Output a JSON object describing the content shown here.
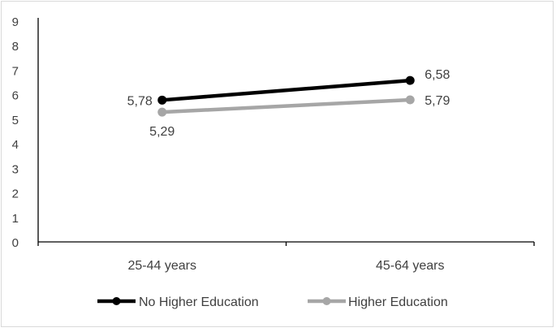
{
  "chart_data": {
    "type": "line",
    "categories": [
      "25-44 years",
      "45-64 years"
    ],
    "ylim": [
      0,
      9
    ],
    "yticks": [
      "0",
      "1",
      "2",
      "3",
      "4",
      "5",
      "6",
      "7",
      "8",
      "9"
    ],
    "series": [
      {
        "name": "No Higher Education",
        "values": [
          5.78,
          6.58
        ],
        "labels": [
          "5,78",
          "6,58"
        ],
        "color": "#000000"
      },
      {
        "name": "Higher Education",
        "values": [
          5.29,
          5.79
        ],
        "labels": [
          "5,29",
          "5,79"
        ],
        "color": "#a6a6a6"
      }
    ],
    "grid": false,
    "legend_position": "bottom"
  }
}
